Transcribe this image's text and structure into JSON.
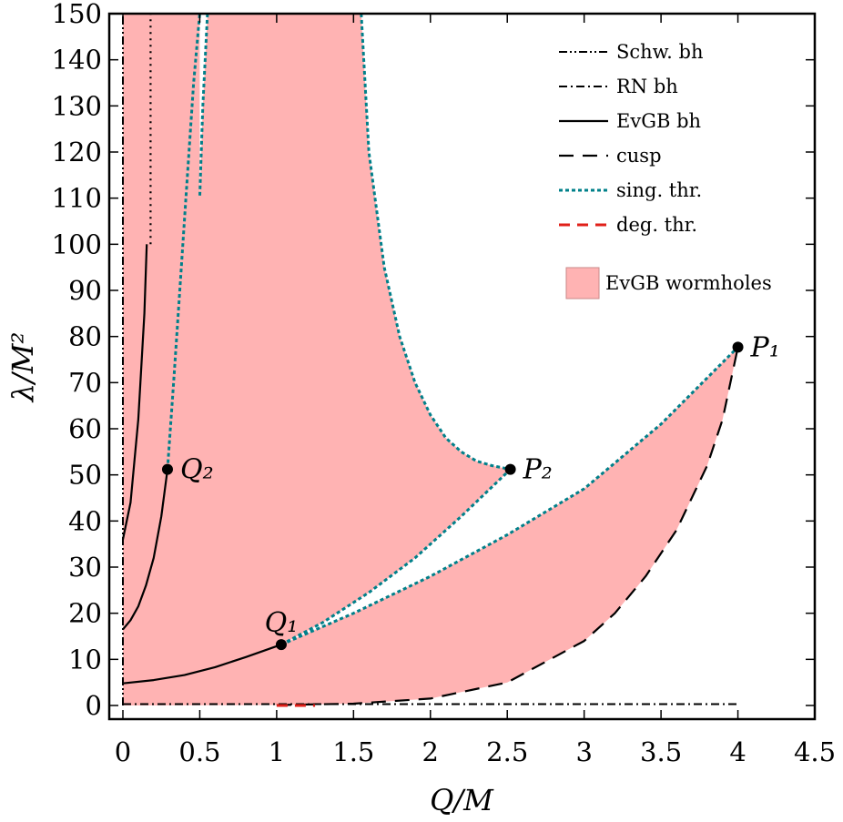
{
  "chart_data": {
    "type": "line",
    "title": "",
    "xlabel": "Q/M",
    "ylabel": "λ/M²",
    "xlim": [
      0,
      4.5
    ],
    "ylim": [
      0,
      150
    ],
    "x_ticks": [
      0,
      0.5,
      1,
      1.5,
      2,
      2.5,
      3,
      3.5,
      4,
      4.5
    ],
    "x_tick_labels": [
      "0",
      "0.5",
      "1",
      "1.5",
      "2",
      "2.5",
      "3",
      "3.5",
      "4",
      "4.5"
    ],
    "y_ticks": [
      0,
      10,
      20,
      30,
      40,
      50,
      60,
      70,
      80,
      90,
      100,
      110,
      120,
      130,
      140,
      150
    ],
    "y_tick_labels": [
      "0",
      "10",
      "20",
      "30",
      "40",
      "50",
      "60",
      "70",
      "80",
      "90",
      "100",
      "110",
      "120",
      "130",
      "140",
      "150"
    ],
    "grid": false,
    "legend_position": "top-right",
    "colors": {
      "region": "#ffb3b3",
      "region_edge": "#c98a8a",
      "sing_thr": "#00808a",
      "deg_thr": "#e0201a",
      "black": "#000000"
    },
    "legend": [
      {
        "label": "Schw. bh",
        "style": "dash-dot-dot"
      },
      {
        "label": "RN bh",
        "style": "dash-dot"
      },
      {
        "label": "EvGB bh",
        "style": "solid"
      },
      {
        "label": "cusp",
        "style": "dashed"
      },
      {
        "label": "sing. thr.",
        "style": "dotted-teal"
      },
      {
        "label": "deg. thr.",
        "style": "dashed-red"
      },
      {
        "label": "EvGB wormholes",
        "style": "fill"
      }
    ],
    "points": [
      {
        "name": "P₁",
        "sub": "1",
        "base": "P",
        "x": 4.0,
        "y": 77.7,
        "label_side": "right"
      },
      {
        "name": "P₂",
        "sub": "2",
        "base": "P",
        "x": 2.52,
        "y": 51.2,
        "label_side": "right"
      },
      {
        "name": "Q₁",
        "sub": "1",
        "base": "Q",
        "x": 1.03,
        "y": 13.2,
        "label_side": "above"
      },
      {
        "name": "Q₂",
        "sub": "2",
        "base": "Q",
        "x": 0.29,
        "y": 51.2,
        "label_side": "right"
      }
    ],
    "series": [
      {
        "name": "Schw. bh",
        "style": "dash-dot-dot",
        "x": [
          0,
          0
        ],
        "y": [
          0,
          150
        ]
      },
      {
        "name": "RN bh",
        "style": "dash-dot",
        "x": [
          0,
          4.0
        ],
        "y": [
          0.3,
          0.3
        ]
      },
      {
        "name": "EvGB bh",
        "style": "dotted-black",
        "x": [
          0.18,
          0.18
        ],
        "y": [
          100,
          150
        ]
      },
      {
        "name": "EvGB bh",
        "style": "solid",
        "x": [
          0,
          0.05,
          0.1,
          0.14,
          0.155
        ],
        "y": [
          36,
          44,
          62,
          85,
          100
        ]
      },
      {
        "name": "EvGB bh",
        "style": "solid",
        "x": [
          0,
          0.05,
          0.1,
          0.15,
          0.2,
          0.25,
          0.29
        ],
        "y": [
          16.5,
          18.5,
          21.5,
          26,
          32,
          41,
          51.2
        ]
      },
      {
        "name": "EvGB bh",
        "style": "solid",
        "x": [
          0,
          0.2,
          0.4,
          0.6,
          0.8,
          1.03
        ],
        "y": [
          4.8,
          5.5,
          6.6,
          8.3,
          10.5,
          13.2
        ]
      },
      {
        "name": "cusp",
        "style": "dashed",
        "x": [
          1.0,
          1.5,
          2.0,
          2.5,
          3.0,
          3.2,
          3.4,
          3.6,
          3.8,
          3.9,
          4.0
        ],
        "y": [
          0.1,
          0.4,
          1.5,
          5,
          14,
          20,
          28,
          38,
          52,
          62,
          77.7
        ]
      },
      {
        "name": "deg. thr.",
        "style": "dashed-red",
        "x": [
          1.0,
          1.25
        ],
        "y": [
          0,
          0
        ]
      },
      {
        "name": "sing. thr.",
        "style": "dotted-teal",
        "x": [
          1.03,
          1.5,
          2.0,
          2.5,
          3.0,
          3.5,
          4.0
        ],
        "y": [
          13.2,
          20,
          28,
          37,
          47,
          61,
          77.7
        ]
      },
      {
        "name": "sing. thr.",
        "style": "dotted-teal",
        "x": [
          1.03,
          1.3,
          1.6,
          1.9,
          2.2,
          2.52
        ],
        "y": [
          13.2,
          18,
          24.5,
          32,
          41,
          51.2
        ]
      },
      {
        "name": "sing. thr.",
        "style": "dotted-teal",
        "x": [
          0.29,
          0.33,
          0.37,
          0.41,
          0.46,
          0.5
        ],
        "y": [
          51.2,
          70,
          90,
          110,
          135,
          150
        ]
      },
      {
        "name": "sing. thr.",
        "style": "dotted-teal",
        "x": [
          0.55,
          0.52,
          0.5
        ],
        "y": [
          150,
          130,
          110
        ]
      },
      {
        "name": "sing. thr.",
        "style": "dotted-teal",
        "x": [
          1.55,
          1.6,
          1.7,
          1.8,
          1.9,
          2.0,
          2.1,
          2.2,
          2.3,
          2.4,
          2.52
        ],
        "y": [
          150,
          120,
          95,
          80,
          70,
          63,
          58,
          55,
          53,
          52,
          51.2
        ]
      }
    ],
    "region_left": {
      "x": [
        0,
        0.5,
        0.5,
        0.52,
        0.55,
        1.55,
        1.6,
        1.7,
        1.8,
        1.9,
        2.0,
        2.1,
        2.2,
        2.3,
        2.4,
        2.52,
        2.2,
        1.9,
        1.6,
        1.3,
        1.03,
        1.5,
        2.0,
        2.5,
        3.0,
        3.5,
        4.0,
        3.9,
        3.8,
        3.6,
        3.4,
        3.2,
        3.0,
        2.5,
        2.0,
        1.5,
        1.0,
        0
      ],
      "y": [
        150,
        150,
        110,
        130,
        150,
        150,
        120,
        95,
        80,
        70,
        63,
        58,
        55,
        53,
        52,
        51.2,
        41,
        32,
        24.5,
        18,
        13.2,
        20,
        28,
        37,
        47,
        61,
        77.7,
        62,
        52,
        38,
        28,
        20,
        14,
        5,
        1.5,
        0.4,
        0.1,
        0
      ]
    }
  }
}
